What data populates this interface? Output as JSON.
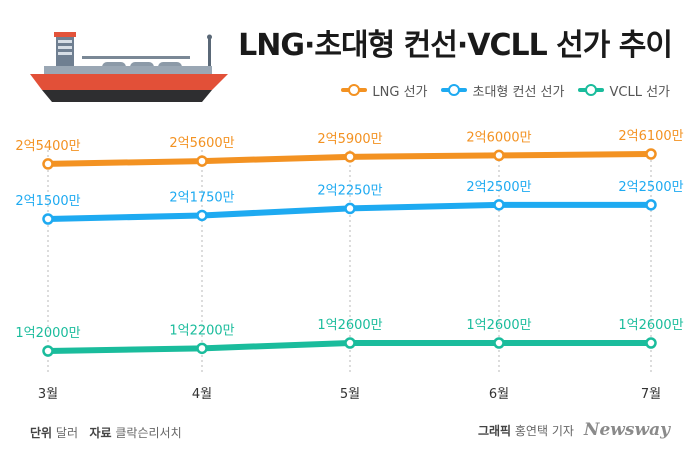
{
  "title": "LNG·초대형 컨선·VCLL 선가 추이",
  "footer": {
    "unit_label": "단위",
    "unit_value": "달러",
    "source_label": "자료",
    "source_value": "클락슨리서치",
    "credit_label": "그래픽",
    "credit_value": "홍연택 기자",
    "brand": "Newsway"
  },
  "icons": {
    "illustration": "ship-icon"
  },
  "chart_data": {
    "type": "line",
    "title": "LNG·초대형 컨선·VCLL 선가 추이",
    "categories": [
      "3월",
      "4월",
      "5월",
      "6월",
      "7월"
    ],
    "unit": "달러",
    "grid": false,
    "legend_position": "top-right",
    "series": [
      {
        "name": "LNG 선가",
        "color": "#f39222",
        "values": [
          254000000,
          256000000,
          259000000,
          260000000,
          261000000
        ],
        "labels": [
          "2억5400만",
          "2억5600만",
          "2억5900만",
          "2억6000만",
          "2억6100만"
        ]
      },
      {
        "name": "초대형 컨선 선가",
        "color": "#1eaaf1",
        "values": [
          215000000,
          217500000,
          222500000,
          225000000,
          225000000
        ],
        "labels": [
          "2억1500만",
          "2억1750만",
          "2억2250만",
          "2억2500만",
          "2억2500만"
        ]
      },
      {
        "name": "VCLL 선가",
        "color": "#1abc9c",
        "values": [
          120000000,
          122000000,
          126000000,
          126000000,
          126000000
        ],
        "labels": [
          "1억2000만",
          "1억2200만",
          "1억2600만",
          "1억2600만",
          "1억2600만"
        ]
      }
    ]
  }
}
